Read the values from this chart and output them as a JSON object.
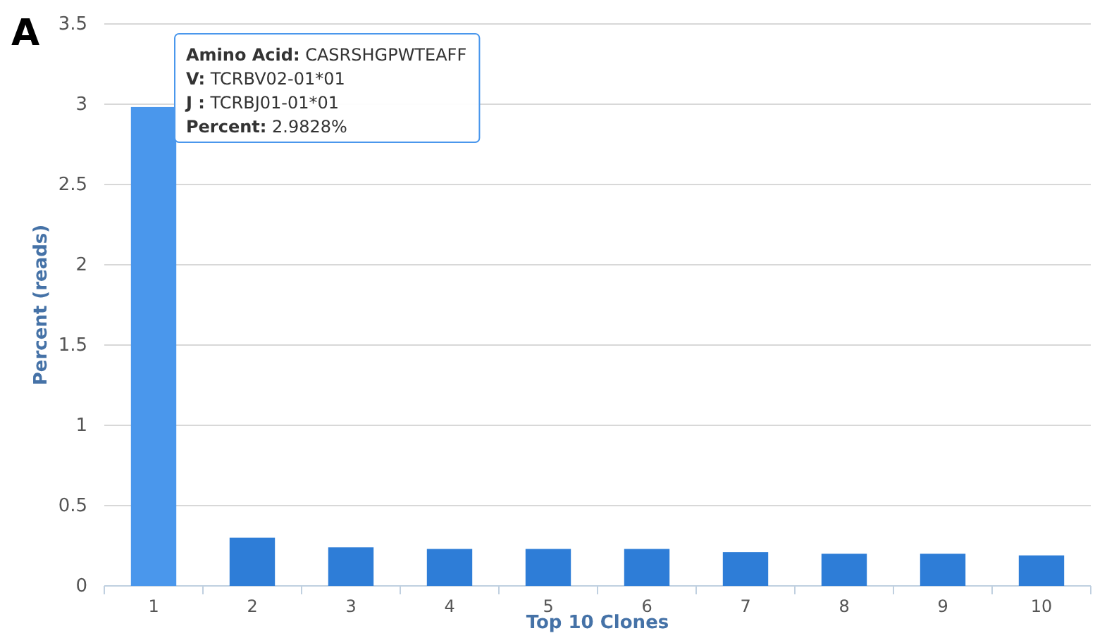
{
  "chart_data": {
    "type": "bar",
    "categories": [
      "1",
      "2",
      "3",
      "4",
      "5",
      "6",
      "7",
      "8",
      "9",
      "10"
    ],
    "values": [
      2.9828,
      0.3,
      0.24,
      0.23,
      0.23,
      0.23,
      0.21,
      0.2,
      0.2,
      0.19
    ],
    "colors": [
      "#4a97ec",
      "#2e7dd7",
      "#2e7dd7",
      "#2e7dd7",
      "#2e7dd7",
      "#2e7dd7",
      "#2e7dd7",
      "#2e7dd7",
      "#2e7dd7",
      "#2e7dd7"
    ],
    "xlabel": "Top 10 Clones",
    "ylabel": "Percent (reads)",
    "ylim": [
      0,
      3.5
    ],
    "yticks": [
      0,
      0.5,
      1,
      1.5,
      2,
      2.5,
      3,
      3.5
    ],
    "grid": "y",
    "annotations": [
      "A",
      "Amino Acid: CASRSHGPWTEAFF",
      "V: TCRBV02-01*01",
      "J : TCRBJ01-01*01",
      "Percent: 2.9828%"
    ]
  }
}
